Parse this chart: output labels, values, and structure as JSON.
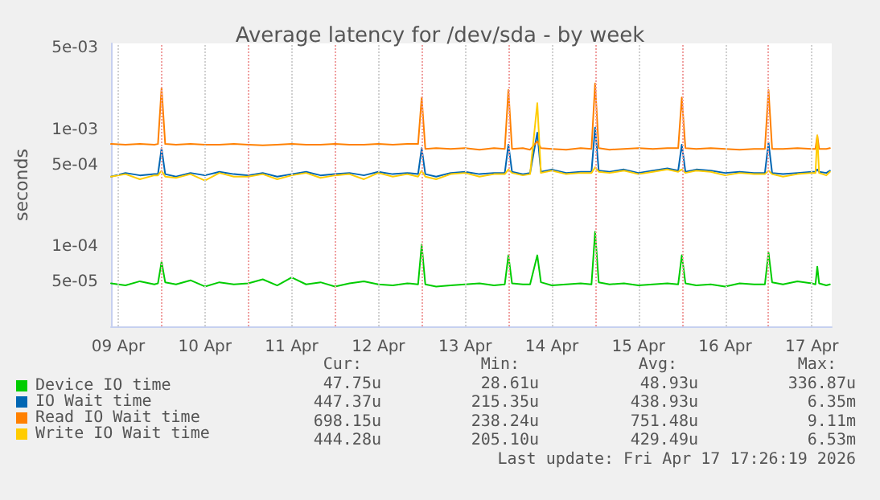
{
  "chart_data": {
    "type": "line",
    "title": "Average latency for /dev/sda - by week",
    "ylabel": "seconds",
    "log": "y",
    "grid": true,
    "legend": "bottom left",
    "marker": "none",
    "line_style": "solid",
    "ylim": [
      2.1e-05,
      0.0055
    ],
    "yticks": [
      {
        "value": 5e-05,
        "label": "5e-05"
      },
      {
        "value": 0.0001,
        "label": "1e-04"
      },
      {
        "value": 0.0005,
        "label": "5e-04"
      },
      {
        "value": 0.001,
        "label": "1e-03"
      },
      {
        "value": 0.005,
        "label": "5e-03"
      }
    ],
    "xlim": [
      "2026-04-09T10:00",
      "2026-04-17T17:30"
    ],
    "xticks": [
      {
        "value": "2026-04-09T12:00",
        "label": "09 Apr"
      },
      {
        "value": "2026-04-10T00:00",
        "label": null
      },
      {
        "value": "2026-04-10T12:00",
        "label": "10 Apr"
      },
      {
        "value": "2026-04-11T00:00",
        "label": null
      },
      {
        "value": "2026-04-11T12:00",
        "label": "11 Apr"
      },
      {
        "value": "2026-04-12T00:00",
        "label": null
      },
      {
        "value": "2026-04-12T12:00",
        "label": "12 Apr"
      },
      {
        "value": "2026-04-13T00:00",
        "label": null
      },
      {
        "value": "2026-04-13T12:00",
        "label": "13 Apr"
      },
      {
        "value": "2026-04-14T00:00",
        "label": null
      },
      {
        "value": "2026-04-14T12:00",
        "label": "14 Apr"
      },
      {
        "value": "2026-04-15T00:00",
        "label": null
      },
      {
        "value": "2026-04-15T12:00",
        "label": "15 Apr"
      },
      {
        "value": "2026-04-16T00:00",
        "label": null
      },
      {
        "value": "2026-04-16T12:00",
        "label": "16 Apr"
      },
      {
        "value": "2026-04-17T00:00",
        "label": null
      },
      {
        "value": "2026-04-17T12:00",
        "label": "17 Apr"
      }
    ],
    "x": [
      "2026-04-09T10:00",
      "2026-04-09T14:00",
      "2026-04-09T18:00",
      "2026-04-09T22:00",
      "2026-04-09T23:00",
      "2026-04-10T00:00",
      "2026-04-10T01:00",
      "2026-04-10T04:00",
      "2026-04-10T08:00",
      "2026-04-10T12:00",
      "2026-04-10T16:00",
      "2026-04-10T20:00",
      "2026-04-11T00:00",
      "2026-04-11T04:00",
      "2026-04-11T08:00",
      "2026-04-11T12:00",
      "2026-04-11T16:00",
      "2026-04-11T20:00",
      "2026-04-12T00:00",
      "2026-04-12T04:00",
      "2026-04-12T08:00",
      "2026-04-12T12:00",
      "2026-04-12T16:00",
      "2026-04-12T20:00",
      "2026-04-12T23:00",
      "2026-04-13T00:00",
      "2026-04-13T01:00",
      "2026-04-13T04:00",
      "2026-04-13T08:00",
      "2026-04-13T12:00",
      "2026-04-13T16:00",
      "2026-04-13T20:00",
      "2026-04-13T23:00",
      "2026-04-14T00:00",
      "2026-04-14T01:00",
      "2026-04-14T04:00",
      "2026-04-14T06:00",
      "2026-04-14T08:00",
      "2026-04-14T09:00",
      "2026-04-14T12:00",
      "2026-04-14T16:00",
      "2026-04-14T20:00",
      "2026-04-14T23:00",
      "2026-04-15T00:00",
      "2026-04-15T01:00",
      "2026-04-15T04:00",
      "2026-04-15T08:00",
      "2026-04-15T12:00",
      "2026-04-15T16:00",
      "2026-04-15T20:00",
      "2026-04-15T23:00",
      "2026-04-16T00:00",
      "2026-04-16T01:00",
      "2026-04-16T04:00",
      "2026-04-16T08:00",
      "2026-04-16T12:00",
      "2026-04-16T16:00",
      "2026-04-16T20:00",
      "2026-04-16T23:00",
      "2026-04-17T00:00",
      "2026-04-17T01:00",
      "2026-04-17T04:00",
      "2026-04-17T08:00",
      "2026-04-17T12:00",
      "2026-04-17T13:00",
      "2026-04-17T13:30",
      "2026-04-17T14:00",
      "2026-04-17T16:00",
      "2026-04-17T17:00"
    ],
    "series": [
      {
        "name": "Device IO time",
        "color": "#00cc00",
        "values": [
          4.9e-05,
          4.7e-05,
          5.1e-05,
          4.8e-05,
          4.9e-05,
          7.5e-05,
          5e-05,
          4.8e-05,
          5.2e-05,
          4.6e-05,
          5e-05,
          4.8e-05,
          4.9e-05,
          5.3e-05,
          4.7e-05,
          5.5e-05,
          4.8e-05,
          5e-05,
          4.6e-05,
          4.9e-05,
          5.1e-05,
          4.8e-05,
          4.7e-05,
          4.9e-05,
          4.8e-05,
          0.000105,
          4.8e-05,
          4.6e-05,
          4.7e-05,
          4.8e-05,
          4.9e-05,
          4.7e-05,
          4.8e-05,
          8.5e-05,
          4.9e-05,
          4.8e-05,
          4.8e-05,
          8.5e-05,
          5e-05,
          4.7e-05,
          4.8e-05,
          4.9e-05,
          4.8e-05,
          0.000135,
          5e-05,
          4.8e-05,
          4.9e-05,
          4.7e-05,
          4.8e-05,
          4.9e-05,
          4.8e-05,
          8.5e-05,
          4.9e-05,
          4.7e-05,
          4.8e-05,
          4.6e-05,
          4.9e-05,
          4.8e-05,
          4.8e-05,
          9e-05,
          5e-05,
          4.8e-05,
          5.1e-05,
          4.9e-05,
          4.8e-05,
          6.8e-05,
          4.9e-05,
          4.7e-05,
          4.8e-05
        ]
      },
      {
        "name": "IO Wait time",
        "color": "#0066b3",
        "values": [
          0.0004,
          0.00043,
          0.00041,
          0.00042,
          0.00042,
          0.0007,
          0.00042,
          0.0004,
          0.00043,
          0.00041,
          0.00044,
          0.00042,
          0.00041,
          0.00043,
          0.0004,
          0.00042,
          0.00044,
          0.00041,
          0.00042,
          0.00043,
          0.00041,
          0.00044,
          0.00042,
          0.00043,
          0.00042,
          0.0007,
          0.00042,
          0.0004,
          0.00043,
          0.00044,
          0.00042,
          0.00043,
          0.00043,
          0.00075,
          0.00044,
          0.00042,
          0.00043,
          0.00095,
          0.00044,
          0.00046,
          0.00043,
          0.00044,
          0.00044,
          0.00105,
          0.00045,
          0.00044,
          0.00046,
          0.00043,
          0.00045,
          0.00047,
          0.00045,
          0.00075,
          0.00044,
          0.00046,
          0.00045,
          0.00043,
          0.00044,
          0.00043,
          0.00043,
          0.00078,
          0.00043,
          0.00042,
          0.00043,
          0.00044,
          0.00044,
          0.00046,
          0.00044,
          0.00043,
          0.00045
        ]
      },
      {
        "name": "Read IO Wait time",
        "color": "#ff8000",
        "values": [
          0.00076,
          0.00075,
          0.00076,
          0.00075,
          0.00076,
          0.0023,
          0.00076,
          0.00075,
          0.00076,
          0.00075,
          0.00075,
          0.00076,
          0.00075,
          0.00074,
          0.00075,
          0.00076,
          0.00075,
          0.00075,
          0.00076,
          0.00075,
          0.00075,
          0.00076,
          0.00075,
          0.00076,
          0.00076,
          0.0019,
          0.00069,
          0.0007,
          0.00069,
          0.0007,
          0.00068,
          0.0007,
          0.00069,
          0.0022,
          0.00069,
          0.0007,
          0.00068,
          0.0008,
          0.0007,
          0.00069,
          0.00068,
          0.0007,
          0.00069,
          0.0025,
          0.0007,
          0.00068,
          0.00069,
          0.0007,
          0.00069,
          0.0007,
          0.0007,
          0.0019,
          0.0007,
          0.00069,
          0.0007,
          0.00069,
          0.00068,
          0.00069,
          0.00069,
          0.0022,
          0.00069,
          0.00069,
          0.0007,
          0.00069,
          0.00069,
          0.0009,
          0.00069,
          0.00069,
          0.0007
        ]
      },
      {
        "name": "Write IO Wait time",
        "color": "#ffcc00",
        "values": [
          0.0004,
          0.00042,
          0.00038,
          0.00041,
          0.00041,
          0.00045,
          0.0004,
          0.00039,
          0.00042,
          0.00037,
          0.00043,
          0.0004,
          0.0004,
          0.00042,
          0.00038,
          0.00041,
          0.00043,
          0.00039,
          0.00041,
          0.00042,
          0.00038,
          0.00043,
          0.0004,
          0.00042,
          0.0004,
          0.00045,
          0.0004,
          0.00038,
          0.00042,
          0.00043,
          0.0004,
          0.00042,
          0.00042,
          0.00046,
          0.00043,
          0.00041,
          0.00042,
          0.0017,
          0.00043,
          0.00045,
          0.00042,
          0.00043,
          0.00043,
          0.00048,
          0.00044,
          0.00043,
          0.00045,
          0.00042,
          0.00044,
          0.00046,
          0.00044,
          0.00046,
          0.00043,
          0.00045,
          0.00044,
          0.00041,
          0.00043,
          0.00042,
          0.00042,
          0.00045,
          0.00042,
          0.0004,
          0.00042,
          0.00043,
          0.00043,
          0.0009,
          0.00043,
          0.00041,
          0.00044
        ]
      }
    ],
    "annotations": [
      "Cur:",
      "Min:",
      "Avg:",
      "Max:",
      "47.75u",
      "28.61u",
      "48.93u",
      "336.87u",
      "447.37u",
      "215.35u",
      "438.93u",
      "6.35m",
      "698.15u",
      "238.24u",
      "751.48u",
      "9.11m",
      "444.28u",
      "205.10u",
      "429.49u",
      "6.53m",
      "Last update: Fri Apr 17 17:26:19 2026"
    ]
  }
}
